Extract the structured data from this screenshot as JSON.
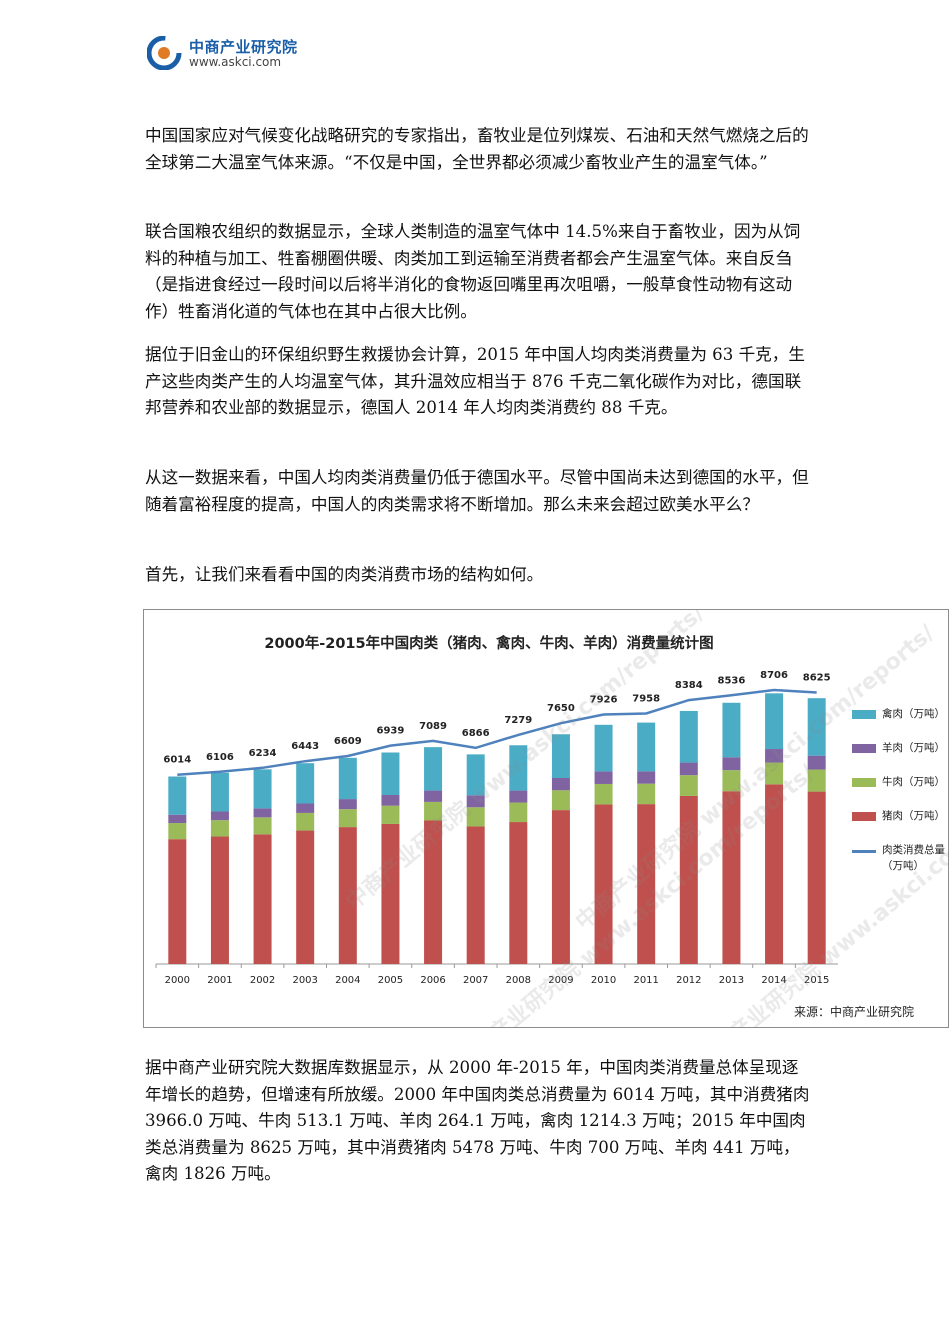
{
  "header": {
    "logo_name": "中商产业研究院",
    "logo_url": "www.askci.com"
  },
  "paragraphs": [
    "中国国家应对气候变化战略研究的专家指出，畜牧业是位列煤炭、石油和天然气燃烧之后的全球第二大温室气体来源。“不仅是中国，全世界都必须减少畜牧业产生的温室气体。”",
    "联合国粮农组织的数据显示，全球人类制造的温室气体中 14.5%来自于畜牧业，因为从饲料的种植与加工、牲畜棚圈供暖、肉类加工到运输至消费者都会产生温室气体。来自反刍（是指进食经过一段时间以后将半消化的食物返回嘴里再次咀嚼，一般草食性动物有这动作）牲畜消化道的气体也在其中占很大比例。",
    "据位于旧金山的环保组织野生救援协会计算，2015 年中国人均肉类消费量为 63 千克，生产这些肉类产生的人均温室气体，其升温效应相当于 876 千克二氧化碳作为对比，德国联邦营养和农业部的数据显示，德国人 2014 年人均肉类消费约 88 千克。",
    "从这一数据来看，中国人均肉类消费量仍低于德国水平。尽管中国尚未达到德国的水平，但随着富裕程度的提高，中国人的肉类需求将不断增加。那么未来会超过欧美水平么？",
    "首先，让我们来看看中国的肉类消费市场的结构如何。",
    "据中商产业研究院大数据库数据显示，从 2000 年-2015 年，中国肉类消费量总体呈现逐年增长的趋势，但增速有所放缓。2000 年中国肉类总消费量为 6014 万吨，其中消费猪肉 3966.0 万吨、牛肉 513.1 万吨、羊肉 264.1 万吨，禽肉 1214.3 万吨；2015 年中国肉类总消费量为 8625 万吨，其中消费猪肉 5478 万吨、牛肉 700 万吨、羊肉 441 万吨，禽肉 1826 万吨。"
  ],
  "chart_data": {
    "type": "bar",
    "stacked": true,
    "title": "2000年-2015年中国肉类（猪肉、禽肉、牛肉、羊肉）消费量统计图",
    "categories": [
      "2000",
      "2001",
      "2002",
      "2003",
      "2004",
      "2005",
      "2006",
      "2007",
      "2008",
      "2009",
      "2010",
      "2011",
      "2012",
      "2013",
      "2014",
      "2015"
    ],
    "series": [
      {
        "name": "猪肉（万吨）",
        "color": "#c0504d",
        "values": [
          3966,
          4050,
          4120,
          4240,
          4350,
          4450,
          4560,
          4370,
          4510,
          4890,
          5070,
          5080,
          5340,
          5490,
          5710,
          5478
        ]
      },
      {
        "name": "牛肉（万吨）",
        "color": "#9bbb59",
        "values": [
          513,
          520,
          540,
          560,
          570,
          580,
          590,
          610,
          620,
          630,
          650,
          650,
          660,
          670,
          690,
          700
        ]
      },
      {
        "name": "羊肉（万吨）",
        "color": "#8064a2",
        "values": [
          264,
          275,
          285,
          300,
          320,
          340,
          360,
          380,
          380,
          390,
          400,
          390,
          400,
          410,
          430,
          441
        ]
      },
      {
        "name": "禽肉（万吨）",
        "color": "#4bacc6",
        "values": [
          1214,
          1230,
          1240,
          1280,
          1310,
          1350,
          1380,
          1300,
          1440,
          1390,
          1480,
          1550,
          1640,
          1730,
          1770,
          1826
        ]
      }
    ],
    "line": {
      "name": "肉类消费总量（万吨）",
      "color": "#4f81bd",
      "values": [
        6014,
        6106,
        6234,
        6443,
        6609,
        6939,
        7089,
        6866,
        7279,
        7650,
        7926,
        7958,
        8384,
        8536,
        8706,
        8625
      ]
    },
    "ylim": [
      0,
      9500
    ],
    "grid": false,
    "legend_position": "right",
    "source": "来源：中商产业研究院"
  },
  "legend_labels": [
    "禽肉（万吨）",
    "羊肉（万吨）",
    "牛肉（万吨）",
    "猪肉（万吨）",
    "肉类消费总量（万吨）"
  ],
  "watermark_text": "中商产业研究院 www.askci.com/reports/"
}
